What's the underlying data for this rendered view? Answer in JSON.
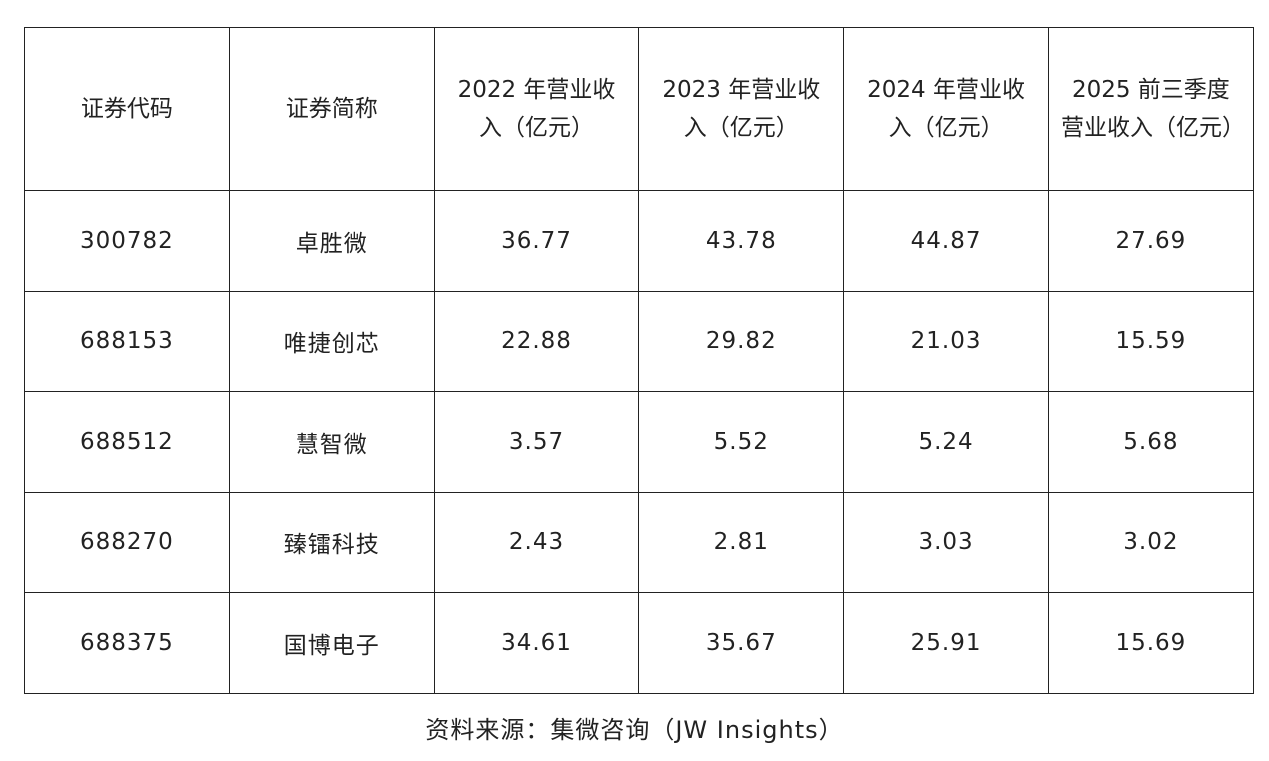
{
  "table": {
    "header": [
      "证券代码",
      "证券简称",
      "2022 年营业收入（亿元）",
      "2023 年营业收入（亿元）",
      "2024 年营业收入（亿元）",
      "2025 前三季度营业收入（亿元）"
    ],
    "rows": [
      [
        "300782",
        "卓胜微",
        "36.77",
        "43.78",
        "44.87",
        "27.69"
      ],
      [
        "688153",
        "唯捷创芯",
        "22.88",
        "29.82",
        "21.03",
        "15.59"
      ],
      [
        "688512",
        "慧智微",
        "3.57",
        "5.52",
        "5.24",
        "5.68"
      ],
      [
        "688270",
        "臻镭科技",
        "2.43",
        "2.81",
        "3.03",
        "3.02"
      ],
      [
        "688375",
        "国博电子",
        "34.61",
        "35.67",
        "25.91",
        "15.69"
      ]
    ]
  },
  "source": "资料来源：集微咨询（JW Insights）"
}
